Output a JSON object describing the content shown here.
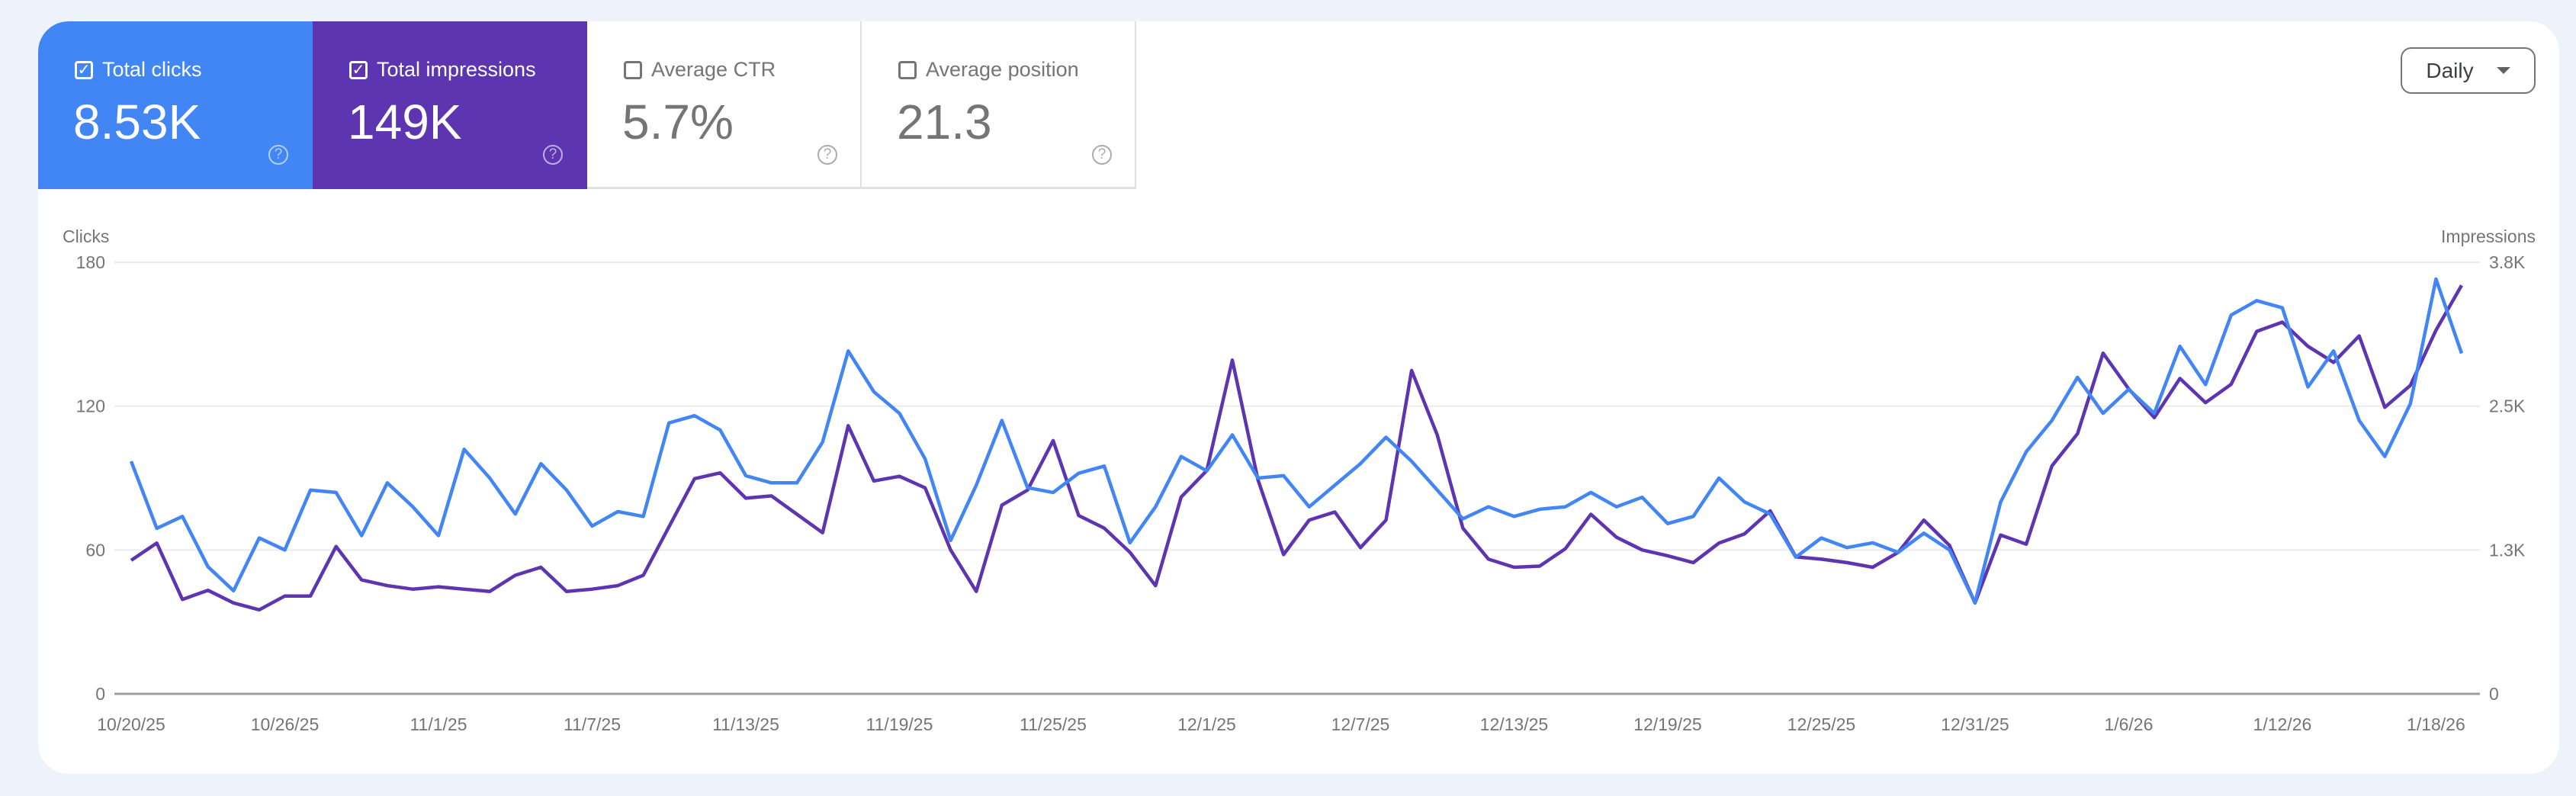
{
  "metrics": [
    {
      "label": "Total clicks",
      "value": "8.53K",
      "checked": true,
      "color": "#4285f4"
    },
    {
      "label": "Total impressions",
      "value": "149K",
      "checked": true,
      "color": "#5e35b1"
    },
    {
      "label": "Average CTR",
      "value": "5.7%",
      "checked": false
    },
    {
      "label": "Average position",
      "value": "21.3",
      "checked": false
    }
  ],
  "help_icon": "help-circle-icon",
  "check_glyph": "✓",
  "help_glyph": "?",
  "granularity": {
    "selected": "Daily"
  },
  "chart_data": {
    "type": "line",
    "left_axis": {
      "label": "Clicks",
      "ticks": [
        "0",
        "60",
        "120",
        "180"
      ],
      "ylim": [
        0,
        180
      ]
    },
    "right_axis": {
      "label": "Impressions",
      "ticks": [
        "0",
        "1.3K",
        "2.5K",
        "3.8K"
      ],
      "ylim": [
        0,
        3750
      ]
    },
    "x_tick_labels": [
      "10/20/25",
      "10/26/25",
      "11/1/25",
      "11/7/25",
      "11/13/25",
      "11/19/25",
      "11/25/25",
      "12/1/25",
      "12/7/25",
      "12/13/25",
      "12/19/25",
      "12/25/25",
      "12/31/25",
      "1/6/26",
      "1/12/26",
      "1/18/26"
    ],
    "x": [
      "10/20/25",
      "10/21/25",
      "10/22/25",
      "10/23/25",
      "10/24/25",
      "10/25/25",
      "10/26/25",
      "10/27/25",
      "10/28/25",
      "10/29/25",
      "10/30/25",
      "10/31/25",
      "11/1/25",
      "11/2/25",
      "11/3/25",
      "11/4/25",
      "11/5/25",
      "11/6/25",
      "11/7/25",
      "11/8/25",
      "11/9/25",
      "11/10/25",
      "11/11/25",
      "11/12/25",
      "11/13/25",
      "11/14/25",
      "11/15/25",
      "11/16/25",
      "11/17/25",
      "11/18/25",
      "11/19/25",
      "11/20/25",
      "11/21/25",
      "11/22/25",
      "11/23/25",
      "11/24/25",
      "11/25/25",
      "11/26/25",
      "11/27/25",
      "11/28/25",
      "11/29/25",
      "11/30/25",
      "12/1/25",
      "12/2/25",
      "12/3/25",
      "12/4/25",
      "12/5/25",
      "12/6/25",
      "12/7/25",
      "12/8/25",
      "12/9/25",
      "12/10/25",
      "12/11/25",
      "12/12/25",
      "12/13/25",
      "12/14/25",
      "12/15/25",
      "12/16/25",
      "12/17/25",
      "12/18/25",
      "12/19/25",
      "12/20/25",
      "12/21/25",
      "12/22/25",
      "12/23/25",
      "12/24/25",
      "12/25/25",
      "12/26/25",
      "12/27/25",
      "12/28/25",
      "12/29/25",
      "12/30/25",
      "12/31/25",
      "1/1/26",
      "1/2/26",
      "1/3/26",
      "1/4/26",
      "1/5/26",
      "1/6/26",
      "1/7/26",
      "1/8/26",
      "1/9/26",
      "1/10/26",
      "1/11/26",
      "1/12/26",
      "1/13/26",
      "1/14/26",
      "1/15/26",
      "1/16/26",
      "1/17/26",
      "1/18/26",
      "1/19/26"
    ],
    "grid": true,
    "series": [
      {
        "name": "Total clicks",
        "axis": "left",
        "color": "#4285f4",
        "values": [
          97,
          69,
          74,
          53,
          43,
          65,
          60,
          85,
          84,
          66,
          88,
          78,
          66,
          102,
          90,
          75,
          96,
          85,
          70,
          76,
          74,
          113,
          116,
          110,
          91,
          88,
          88,
          105,
          143,
          126,
          117,
          98,
          64,
          87,
          114,
          86,
          84,
          92,
          95,
          63,
          78,
          99,
          93,
          108,
          90,
          91,
          78,
          87,
          96,
          107,
          97,
          85,
          73,
          78,
          74,
          77,
          78,
          84,
          78,
          82,
          71,
          74,
          90,
          80,
          75,
          57,
          65,
          61,
          63,
          59,
          67,
          60,
          38,
          80,
          101,
          114,
          132,
          117,
          127,
          117,
          145,
          129,
          158,
          164,
          161,
          128,
          143,
          114,
          99,
          121,
          173,
          142
        ]
      },
      {
        "name": "Total impressions",
        "axis": "right",
        "color": "#5e35b1",
        "values": [
          1160,
          1310,
          820,
          900,
          790,
          730,
          850,
          850,
          1280,
          990,
          940,
          910,
          930,
          910,
          890,
          1030,
          1100,
          890,
          910,
          940,
          1030,
          1450,
          1870,
          1920,
          1700,
          1720,
          1560,
          1400,
          2330,
          1850,
          1890,
          1790,
          1250,
          890,
          1640,
          1770,
          2200,
          1550,
          1440,
          1230,
          940,
          1710,
          1940,
          2900,
          1860,
          1210,
          1510,
          1580,
          1270,
          1510,
          2810,
          2250,
          1440,
          1170,
          1100,
          1110,
          1260,
          1560,
          1360,
          1250,
          1200,
          1140,
          1310,
          1390,
          1590,
          1190,
          1170,
          1140,
          1100,
          1230,
          1510,
          1290,
          790,
          1380,
          1300,
          1980,
          2260,
          2960,
          2650,
          2400,
          2740,
          2530,
          2690,
          3150,
          3230,
          3020,
          2880,
          3110,
          2490,
          2680,
          3160,
          3550
        ]
      }
    ]
  }
}
